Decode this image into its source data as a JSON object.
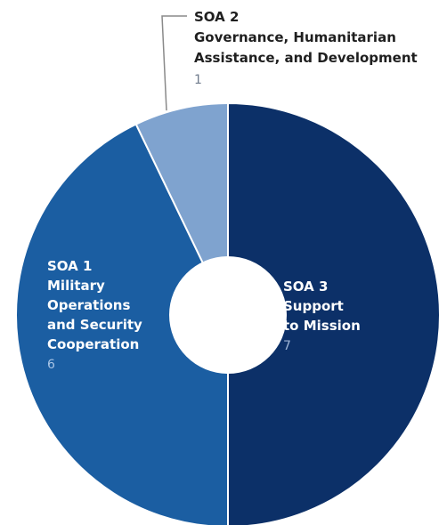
{
  "chart_data": {
    "type": "pie",
    "donut": true,
    "slices": [
      {
        "code": "SOA 3",
        "label_lines": [
          "Support",
          "to Mission"
        ],
        "value": 7,
        "color": "#0c3068",
        "value_color": "#9fb5d6"
      },
      {
        "code": "SOA 1",
        "label_lines": [
          "Military",
          "Operations",
          "and Security",
          "Cooperation"
        ],
        "value": 6,
        "color": "#1b5ea2",
        "value_color": "#a9c5e6"
      },
      {
        "code": "SOA 2",
        "label_lines": [
          "Governance, Humanitarian",
          "Assistance, and Development"
        ],
        "value": 1,
        "color": "#7fa3cf",
        "value_color": "#6f7b8c"
      }
    ]
  }
}
